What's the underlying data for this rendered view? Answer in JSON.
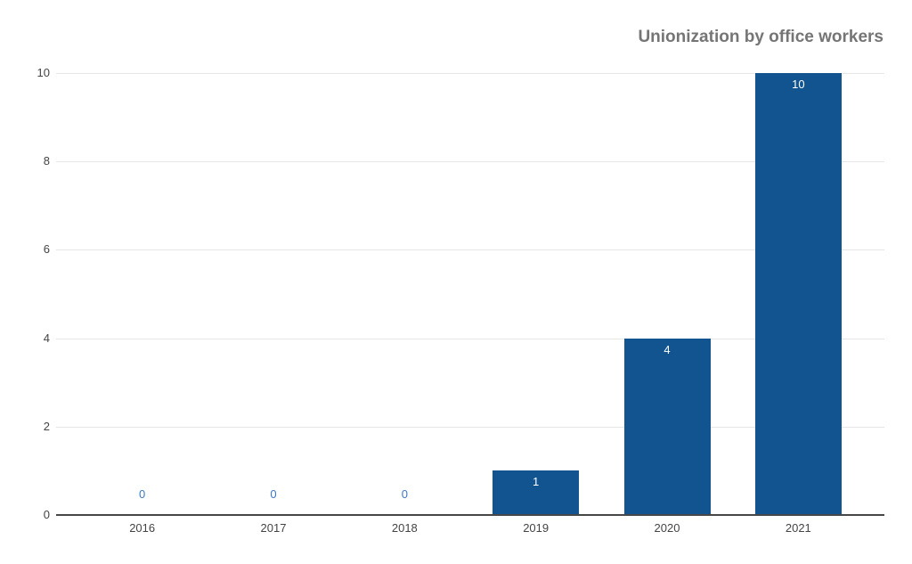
{
  "chart_data": {
    "type": "bar",
    "title": "Unionization by office workers",
    "categories": [
      "2016",
      "2017",
      "2018",
      "2019",
      "2020",
      "2021"
    ],
    "values": [
      0,
      0,
      0,
      1,
      4,
      10
    ],
    "xlabel": "",
    "ylabel": "",
    "ylim": [
      0,
      10
    ],
    "yticks": [
      0,
      2,
      4,
      6,
      8,
      10
    ],
    "grid": "horizontal",
    "legend_position": "none",
    "bar_color": "#11548f",
    "value_label_color": "#ffffff",
    "zero_label_color": "#3d79c4",
    "gridline_color": "#e6e6e6",
    "axis_line_color": "#474747",
    "tick_label_color": "#444444",
    "title_color": "#757575",
    "background_color": "#ffffff"
  }
}
